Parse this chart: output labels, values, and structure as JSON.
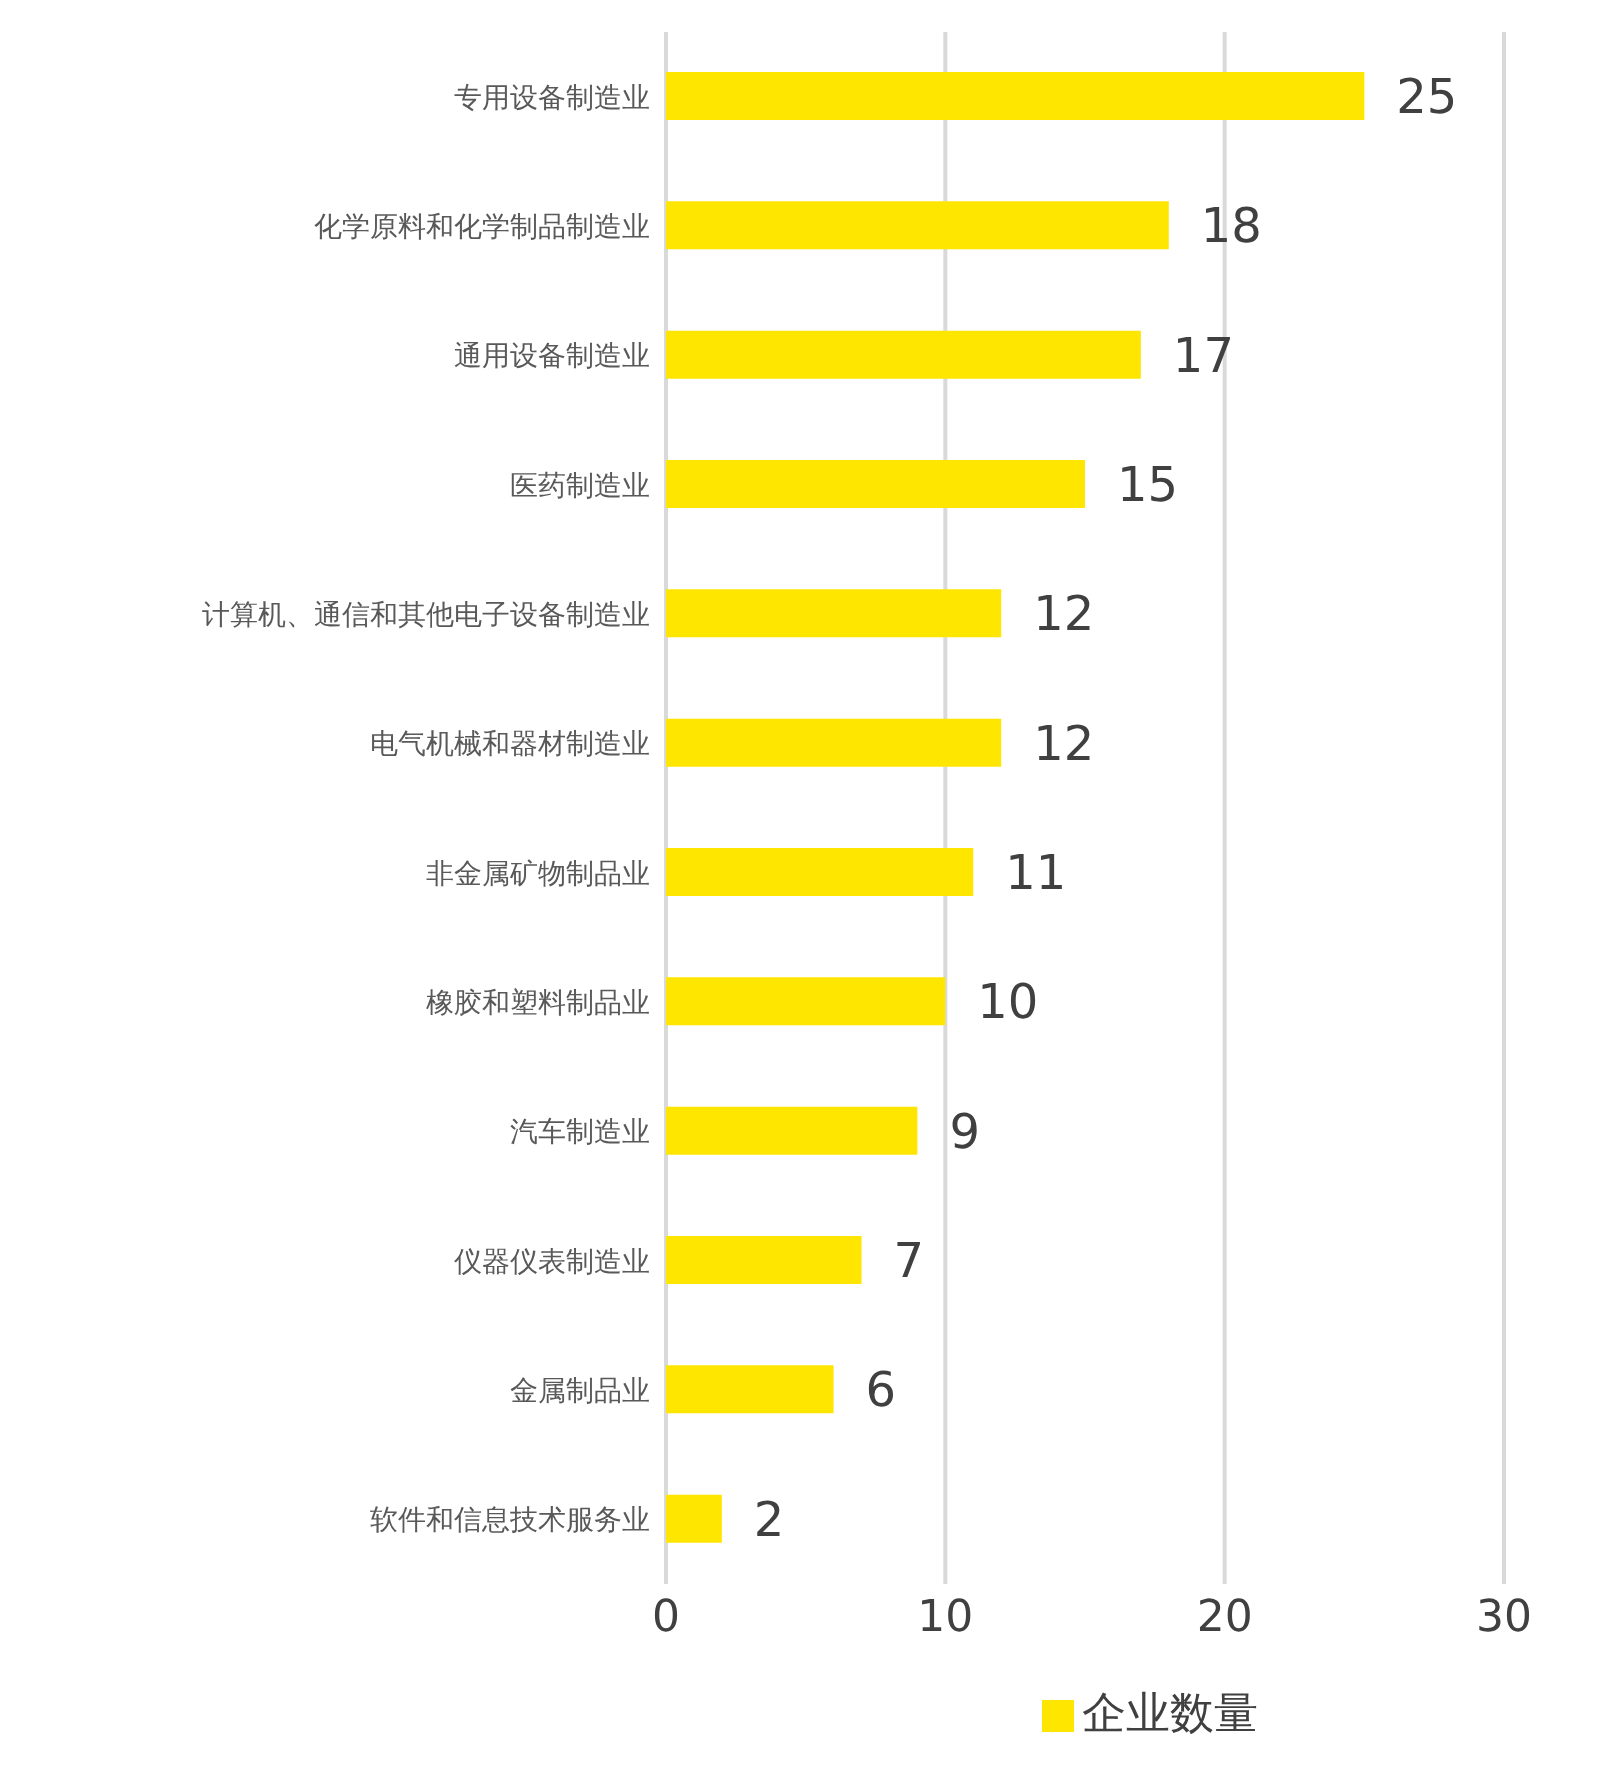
{
  "chart_data": {
    "type": "bar",
    "orientation": "horizontal",
    "categories": [
      "专用设备制造业",
      "化学原料和化学制品制造业",
      "通用设备制造业",
      "医药制造业",
      "计算机、通信和其他电子设备制造业",
      "电气机械和器材制造业",
      "非金属矿物制品业",
      "橡胶和塑料制品业",
      "汽车制造业",
      "仪器仪表制造业",
      "金属制品业",
      "软件和信息技术服务业"
    ],
    "series": [
      {
        "name": "企业数量",
        "color": "#ffe600",
        "values": [
          25,
          18,
          17,
          15,
          12,
          12,
          11,
          10,
          9,
          7,
          6,
          2
        ]
      }
    ],
    "xlim": [
      0,
      30
    ],
    "xticks": [
      0,
      10,
      20,
      30
    ],
    "grid": "x",
    "legend": "bottom",
    "data_labels": true
  }
}
